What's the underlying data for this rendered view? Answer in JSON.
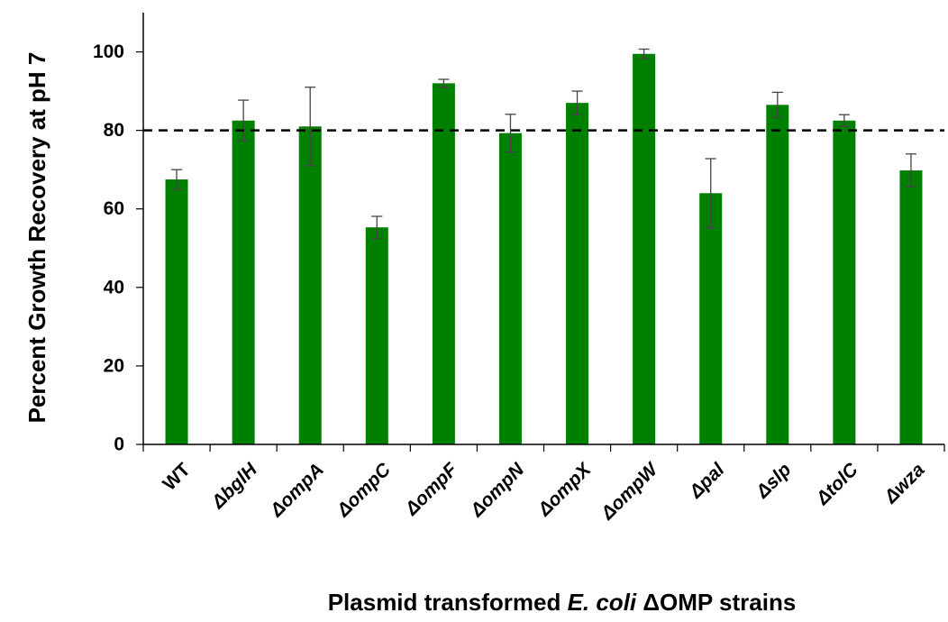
{
  "chart_data": {
    "type": "bar",
    "ylabel": "Percent Growth Recovery at pH 7",
    "xlabel_parts": {
      "prefix": "Plasmid transformed ",
      "species": "E. coli",
      "suffix": " ΔOMP strains"
    },
    "categories": [
      "WT",
      "ΔbglH",
      "ΔompA",
      "ΔompC",
      "ΔompF",
      "ΔompN",
      "ΔompX",
      "ΔompW",
      "Δpal",
      "Δslp",
      "ΔtolC",
      "Δwza"
    ],
    "values": [
      67.5,
      82.5,
      81,
      55.3,
      92,
      79.3,
      87,
      99.5,
      64,
      86.5,
      82.5,
      69.8
    ],
    "errors": [
      2.5,
      5.2,
      10,
      2.8,
      1,
      4.8,
      3,
      1.2,
      8.8,
      3.2,
      1.5,
      4.2
    ],
    "ylim": [
      0,
      110
    ],
    "yticks": [
      0,
      20,
      40,
      60,
      80,
      100
    ],
    "reference_line": 80,
    "bar_color": "#008000",
    "grid": false
  }
}
